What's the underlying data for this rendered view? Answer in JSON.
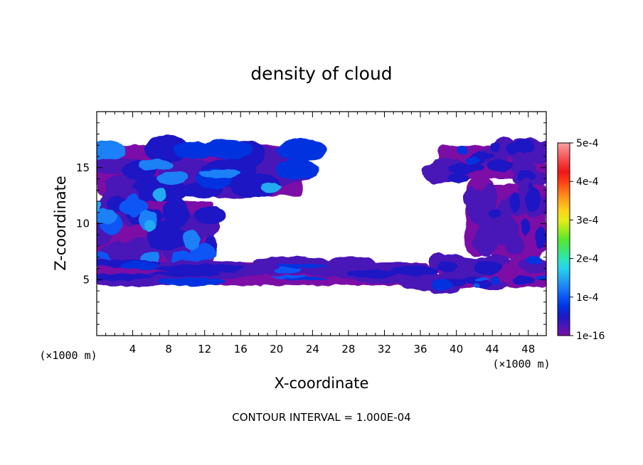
{
  "chart_data": {
    "type": "heatmap",
    "title": "density of cloud",
    "xlabel": "X-coordinate",
    "ylabel": "Z-coordinate",
    "x_unit_left": "(×1000 m)",
    "x_unit_right": "(×1000 m)",
    "xlim": [
      0,
      50
    ],
    "ylim": [
      0,
      20
    ],
    "x_ticks": [
      4,
      8,
      12,
      16,
      20,
      24,
      28,
      32,
      36,
      40,
      44,
      48
    ],
    "y_ticks": [
      5,
      10,
      15
    ],
    "colorbar": {
      "labels": [
        "5e-4",
        "4e-4",
        "3e-4",
        "2e-4",
        "1e-4",
        "1e-16"
      ],
      "min": 1e-16,
      "max": 0.0005,
      "colors": [
        "#7b0fa6",
        "#4a16b8",
        "#1d19c4",
        "#0033e0",
        "#0a55f5",
        "#1a80f7",
        "#22aaf2",
        "#26d3ee",
        "#2ee6b4",
        "#3fe66a",
        "#58e82d",
        "#a4ea20",
        "#e6ea1a",
        "#ffd21a",
        "#ffa51a",
        "#ff7418",
        "#ff3c16",
        "#ee1616",
        "#f24040",
        "#f77070",
        "#fba0a0"
      ]
    },
    "regions": [
      {
        "name": "left-upper-cloud",
        "x_range": [
          0,
          23
        ],
        "z_range": [
          12.5,
          17
        ],
        "max_value": 0.00015
      },
      {
        "name": "left-middle-cloud",
        "x_range": [
          0,
          13
        ],
        "z_range": [
          6.5,
          12
        ],
        "max_value": 0.00017
      },
      {
        "name": "lower-band",
        "x_range": [
          0,
          37
        ],
        "z_range": [
          4.5,
          6.5
        ],
        "max_value": 0.0001
      },
      {
        "name": "right-upper-cloud",
        "x_range": [
          38,
          50
        ],
        "z_range": [
          14,
          17
        ],
        "max_value": 8e-05
      },
      {
        "name": "right-middle-cloud",
        "x_range": [
          41,
          50
        ],
        "z_range": [
          7.5,
          13.5
        ],
        "max_value": 6e-05
      },
      {
        "name": "right-lower-cloud",
        "x_range": [
          38,
          50
        ],
        "z_range": [
          4.3,
          6.8
        ],
        "max_value": 0.0001
      }
    ],
    "grid": false,
    "legend": "right"
  },
  "footer": {
    "contour_note": "CONTOUR INTERVAL = 1.000E-04"
  }
}
